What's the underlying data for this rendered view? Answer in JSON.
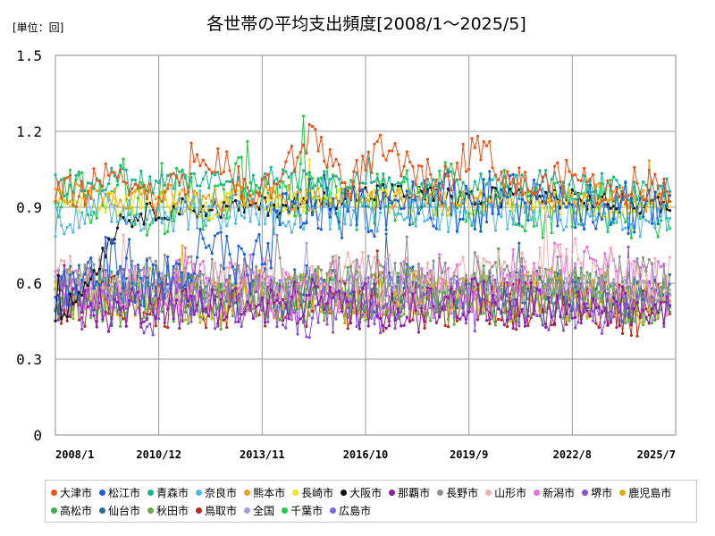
{
  "chart_data": {
    "type": "line",
    "title": "各世帯の平均支出頻度[2008/1～2025/5]",
    "unit_label": "[単位：回]",
    "xlabel": "",
    "ylabel": "",
    "x_tick_labels": [
      "2008/1",
      "2010/12",
      "2013/11",
      "2016/10",
      "2019/9",
      "2022/8",
      "2025/7"
    ],
    "x_range": [
      "2008/1",
      "2025/7"
    ],
    "y_ticks": [
      0,
      0.3,
      0.6,
      0.9,
      1.2,
      1.5
    ],
    "y_tick_labels": [
      "0",
      "0.3",
      "0.6",
      "0.9",
      "1.2",
      "1.5"
    ],
    "ylim": [
      0,
      1.5
    ],
    "grid": true,
    "legend_position": "bottom",
    "series": [
      {
        "name": "大津市",
        "color": "#e8541c",
        "level": 0.96,
        "spread": 0.07,
        "values": [
          0.95,
          0.97,
          1.05,
          0.93,
          1.0,
          1.1,
          0.94,
          1.02,
          1.2,
          0.98,
          1.12,
          1.05,
          0.99,
          1.16,
          1.01,
          0.97,
          1.04,
          0.95,
          1.0,
          0.98
        ]
      },
      {
        "name": "松江市",
        "color": "#1f5de0",
        "level": 0.6,
        "spread": 0.12,
        "values": [
          0.55,
          0.62,
          0.7,
          0.58,
          0.66,
          0.74,
          0.6,
          0.85,
          0.92,
          0.88,
          0.9,
          0.95,
          0.93,
          0.92,
          0.94,
          0.91,
          0.93,
          0.92,
          0.9,
          0.91
        ]
      },
      {
        "name": "青森市",
        "color": "#19b58a",
        "level": 0.98,
        "spread": 0.05,
        "values": [
          0.98,
          1.0,
          1.02,
          0.99,
          1.01,
          1.0,
          0.98,
          1.03,
          1.0,
          0.99,
          1.01,
          0.98,
          1.0,
          0.99,
          0.97,
          1.0,
          0.98,
          0.99,
          0.97,
          0.98
        ]
      },
      {
        "name": "奈良市",
        "color": "#4fb8e6",
        "level": 0.88,
        "spread": 0.08,
        "values": [
          0.86,
          0.88,
          0.9,
          0.87,
          0.89,
          0.88,
          0.9,
          0.86,
          0.88,
          0.89,
          0.87,
          0.9,
          0.88,
          0.87,
          0.89,
          0.9,
          0.88,
          0.87,
          0.86,
          0.88
        ]
      },
      {
        "name": "熊本市",
        "color": "#f0a020",
        "level": 0.94,
        "spread": 0.05,
        "values": [
          0.94,
          0.95,
          0.93,
          0.96,
          0.94,
          0.92,
          0.95,
          0.94,
          0.93,
          0.96,
          0.94,
          0.95,
          0.93,
          0.94,
          0.96,
          0.93,
          0.94,
          0.95,
          0.92,
          0.94
        ]
      },
      {
        "name": "長崎市",
        "color": "#f4e21a",
        "level": 0.92,
        "spread": 0.05,
        "values": [
          0.92,
          0.93,
          0.91,
          0.94,
          0.92,
          0.9,
          0.93,
          0.92,
          0.91,
          0.94,
          0.92,
          0.93,
          0.91,
          0.92,
          0.9,
          0.91,
          0.92,
          0.9,
          0.89,
          0.91
        ]
      },
      {
        "name": "大阪市",
        "color": "#111111",
        "level": 0.9,
        "spread": 0.04,
        "values": [
          0.45,
          0.6,
          0.85,
          0.88,
          0.9,
          0.89,
          0.91,
          0.9,
          0.92,
          0.94,
          0.96,
          0.95,
          0.94,
          0.93,
          0.95,
          0.94,
          0.93,
          0.92,
          0.91,
          0.92
        ]
      },
      {
        "name": "那覇市",
        "color": "#8e1aa8",
        "level": 0.5,
        "spread": 0.09,
        "values": [
          0.5,
          0.52,
          0.48,
          0.55,
          0.5,
          0.53,
          0.49,
          0.51,
          0.54,
          0.5,
          0.52,
          0.48,
          0.51,
          0.53,
          0.5,
          0.52,
          0.49,
          0.51,
          0.5,
          0.52
        ]
      },
      {
        "name": "長野市",
        "color": "#8c9090",
        "level": 0.6,
        "spread": 0.1,
        "values": [
          0.6,
          0.62,
          0.58,
          0.64,
          0.6,
          0.63,
          0.59,
          0.61,
          0.64,
          0.6,
          0.62,
          0.58,
          0.61,
          0.63,
          0.6,
          0.62,
          0.59,
          0.61,
          0.6,
          0.62
        ]
      },
      {
        "name": "山形市",
        "color": "#f0b0b0",
        "level": 0.6,
        "spread": 0.1,
        "values": [
          0.62,
          0.6,
          0.64,
          0.58,
          0.61,
          0.63,
          0.6,
          0.62,
          0.59,
          0.64,
          0.61,
          0.63,
          0.6,
          0.62,
          0.66,
          0.64,
          0.68,
          0.66,
          0.63,
          0.62
        ]
      },
      {
        "name": "新潟市",
        "color": "#e870e8",
        "level": 0.58,
        "spread": 0.11,
        "values": [
          0.58,
          0.56,
          0.6,
          0.55,
          0.59,
          0.57,
          0.61,
          0.56,
          0.58,
          0.6,
          0.57,
          0.59,
          0.56,
          0.6,
          0.62,
          0.64,
          0.66,
          0.63,
          0.6,
          0.58
        ]
      },
      {
        "name": "堺市",
        "color": "#8a4fd6",
        "level": 0.52,
        "spread": 0.11,
        "values": [
          0.52,
          0.48,
          0.55,
          0.5,
          0.53,
          0.49,
          0.54,
          0.51,
          0.48,
          0.53,
          0.5,
          0.55,
          0.51,
          0.49,
          0.53,
          0.5,
          0.52,
          0.48,
          0.54,
          0.51
        ]
      },
      {
        "name": "鹿児島市",
        "color": "#d8b410",
        "level": 0.55,
        "spread": 0.1,
        "values": [
          0.55,
          0.57,
          0.53,
          0.58,
          0.55,
          0.52,
          0.56,
          0.54,
          0.57,
          0.53,
          0.55,
          0.58,
          0.54,
          0.56,
          0.53,
          0.57,
          0.54,
          0.55,
          0.52,
          0.55
        ]
      },
      {
        "name": "高松市",
        "color": "#3cae4a",
        "level": 0.55,
        "spread": 0.1,
        "values": [
          0.55,
          0.53,
          0.57,
          0.52,
          0.56,
          0.54,
          0.58,
          0.53,
          0.55,
          0.57,
          0.52,
          0.56,
          0.54,
          0.58,
          0.55,
          0.53,
          0.57,
          0.54,
          0.52,
          0.55
        ]
      },
      {
        "name": "仙台市",
        "color": "#2a6f8f",
        "level": 0.57,
        "spread": 0.09,
        "values": [
          0.57,
          0.59,
          0.55,
          0.6,
          0.57,
          0.54,
          0.58,
          0.56,
          0.59,
          0.55,
          0.57,
          0.6,
          0.56,
          0.58,
          0.55,
          0.59,
          0.56,
          0.57,
          0.54,
          0.57
        ]
      },
      {
        "name": "秋田市",
        "color": "#6aaa40",
        "level": 0.54,
        "spread": 0.1,
        "values": [
          0.54,
          0.56,
          0.52,
          0.57,
          0.54,
          0.51,
          0.55,
          0.53,
          0.56,
          0.52,
          0.54,
          0.57,
          0.53,
          0.55,
          0.52,
          0.56,
          0.53,
          0.54,
          0.51,
          0.54
        ]
      },
      {
        "name": "鳥取市",
        "color": "#b82a1a",
        "level": 0.52,
        "spread": 0.1,
        "values": [
          0.52,
          0.5,
          0.54,
          0.49,
          0.53,
          0.51,
          0.55,
          0.5,
          0.52,
          0.54,
          0.49,
          0.53,
          0.51,
          0.55,
          0.52,
          0.5,
          0.54,
          0.51,
          0.49,
          0.52
        ]
      },
      {
        "name": "全国",
        "color": "#a59ae8",
        "level": 0.58,
        "spread": 0.05,
        "values": [
          0.58,
          0.59,
          0.57,
          0.6,
          0.58,
          0.57,
          0.59,
          0.58,
          0.6,
          0.57,
          0.58,
          0.59,
          0.57,
          0.58,
          0.59,
          0.58,
          0.57,
          0.59,
          0.58,
          0.58
        ]
      },
      {
        "name": "千葉市",
        "color": "#22cc44",
        "level": 0.9,
        "spread": 0.12,
        "values": [
          0.95,
          0.92,
          1.0,
          0.88,
          0.96,
          0.9,
          1.05,
          0.92,
          0.98,
          0.9,
          0.95,
          0.93,
          1.0,
          0.91,
          0.96,
          0.89,
          0.94,
          0.92,
          0.88,
          0.9
        ]
      },
      {
        "name": "広島市",
        "color": "#8068e0",
        "level": 0.55,
        "spread": 0.09,
        "values": [
          0.55,
          0.57,
          0.53,
          0.58,
          0.55,
          0.52,
          0.56,
          0.54,
          0.57,
          0.53,
          0.55,
          0.58,
          0.54,
          0.56,
          0.53,
          0.57,
          0.54,
          0.55,
          0.52,
          0.55
        ]
      }
    ]
  }
}
